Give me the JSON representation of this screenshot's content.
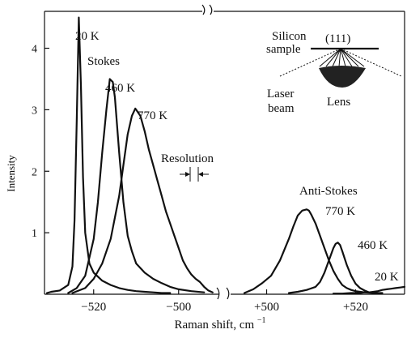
{
  "chart_data": {
    "type": "line",
    "title": "",
    "xlabel": "Raman shift, cm",
    "xlabel_exponent": "−1",
    "ylabel": "Intensity",
    "ylim": [
      0,
      4.6
    ],
    "yticks": [
      1,
      2,
      3,
      4
    ],
    "grid": false,
    "x_axis_break": true,
    "panels": [
      {
        "name": "Stokes",
        "xlim": [
          -531,
          -491
        ],
        "ticks": [
          -520,
          -500
        ],
        "tick_labels": [
          "−520",
          "−500"
        ]
      },
      {
        "name": "Anti-Stokes",
        "xlim": [
          491,
          531
        ],
        "ticks": [
          500,
          520
        ],
        "tick_labels": [
          "+500",
          "+520"
        ]
      }
    ],
    "series": [
      {
        "name": "20 K",
        "panel": 0,
        "x": [
          -531,
          -530,
          -528,
          -526,
          -525,
          -524.5,
          -524,
          -523.5,
          -523,
          -522.5,
          -522,
          -521,
          -520,
          -518,
          -516,
          -514,
          -512,
          -510,
          -508,
          -506,
          -504,
          -502
        ],
        "y": [
          0.02,
          0.04,
          0.06,
          0.15,
          0.45,
          1.2,
          2.8,
          4.5,
          3.4,
          1.9,
          1.0,
          0.5,
          0.35,
          0.22,
          0.15,
          0.1,
          0.07,
          0.05,
          0.04,
          0.03,
          0.02,
          0.02
        ]
      },
      {
        "name": "460 K",
        "panel": 0,
        "x": [
          -526,
          -524,
          -522,
          -520,
          -519,
          -518,
          -517,
          -516.2,
          -515.5,
          -515,
          -514,
          -513,
          -512,
          -511,
          -510,
          -508,
          -506,
          -504,
          -502,
          -500,
          -497,
          -494
        ],
        "y": [
          0.02,
          0.1,
          0.3,
          0.9,
          1.5,
          2.3,
          3.0,
          3.5,
          3.45,
          3.2,
          2.3,
          1.5,
          0.95,
          0.7,
          0.5,
          0.35,
          0.25,
          0.18,
          0.12,
          0.08,
          0.05,
          0.03
        ]
      },
      {
        "name": "770 K",
        "panel": 0,
        "x": [
          -525,
          -522,
          -520,
          -518,
          -516,
          -514,
          -513,
          -512,
          -511,
          -510.2,
          -510,
          -509,
          -508,
          -507,
          -506,
          -505,
          -504,
          -503,
          -502,
          -501,
          -500,
          -499,
          -498,
          -497,
          -496,
          -495,
          -494,
          -493,
          -492
        ],
        "y": [
          0.02,
          0.1,
          0.25,
          0.5,
          0.9,
          1.6,
          2.1,
          2.6,
          2.9,
          3.02,
          3.0,
          2.9,
          2.65,
          2.35,
          2.1,
          1.85,
          1.6,
          1.35,
          1.15,
          0.95,
          0.75,
          0.55,
          0.42,
          0.32,
          0.25,
          0.2,
          0.12,
          0.06,
          0.03
        ]
      },
      {
        "name": "770 K",
        "panel": 1,
        "x": [
          495,
          497,
          499,
          501,
          503,
          505,
          506,
          507,
          508,
          509,
          509.5,
          510,
          511,
          512,
          513,
          514,
          515,
          516,
          517,
          518,
          519,
          520,
          521,
          522,
          524,
          526
        ],
        "y": [
          0.02,
          0.08,
          0.18,
          0.3,
          0.55,
          0.9,
          1.1,
          1.28,
          1.36,
          1.38,
          1.36,
          1.3,
          1.15,
          0.95,
          0.75,
          0.55,
          0.38,
          0.25,
          0.15,
          0.1,
          0.07,
          0.05,
          0.04,
          0.03,
          0.02,
          0.02
        ]
      },
      {
        "name": "460 K",
        "panel": 1,
        "x": [
          505,
          507,
          509,
          511,
          512,
          513,
          514,
          515,
          515.5,
          516,
          516.5,
          517,
          518,
          519,
          520,
          521,
          522,
          523,
          525
        ],
        "y": [
          0.02,
          0.04,
          0.07,
          0.12,
          0.2,
          0.35,
          0.55,
          0.75,
          0.82,
          0.84,
          0.8,
          0.7,
          0.48,
          0.3,
          0.17,
          0.1,
          0.06,
          0.03,
          0.02
        ]
      },
      {
        "name": "20 K",
        "panel": 1,
        "x": [
          515,
          517,
          519,
          521,
          522,
          523,
          524,
          525,
          526,
          527,
          528,
          529,
          530,
          531
        ],
        "y": [
          0.01,
          0.01,
          0.02,
          0.02,
          0.03,
          0.03,
          0.04,
          0.05,
          0.07,
          0.08,
          0.09,
          0.1,
          0.11,
          0.12
        ]
      }
    ],
    "annotations": {
      "stokes_label": "Stokes",
      "anti_stokes_label": "Anti-Stokes",
      "resolution_label": "Resolution",
      "inset": {
        "silicon_label": "Silicon",
        "sample_label": "sample",
        "plane_label": "(111)",
        "laser_label": "Laser",
        "beam_label": "beam",
        "lens_label": "Lens"
      }
    }
  }
}
